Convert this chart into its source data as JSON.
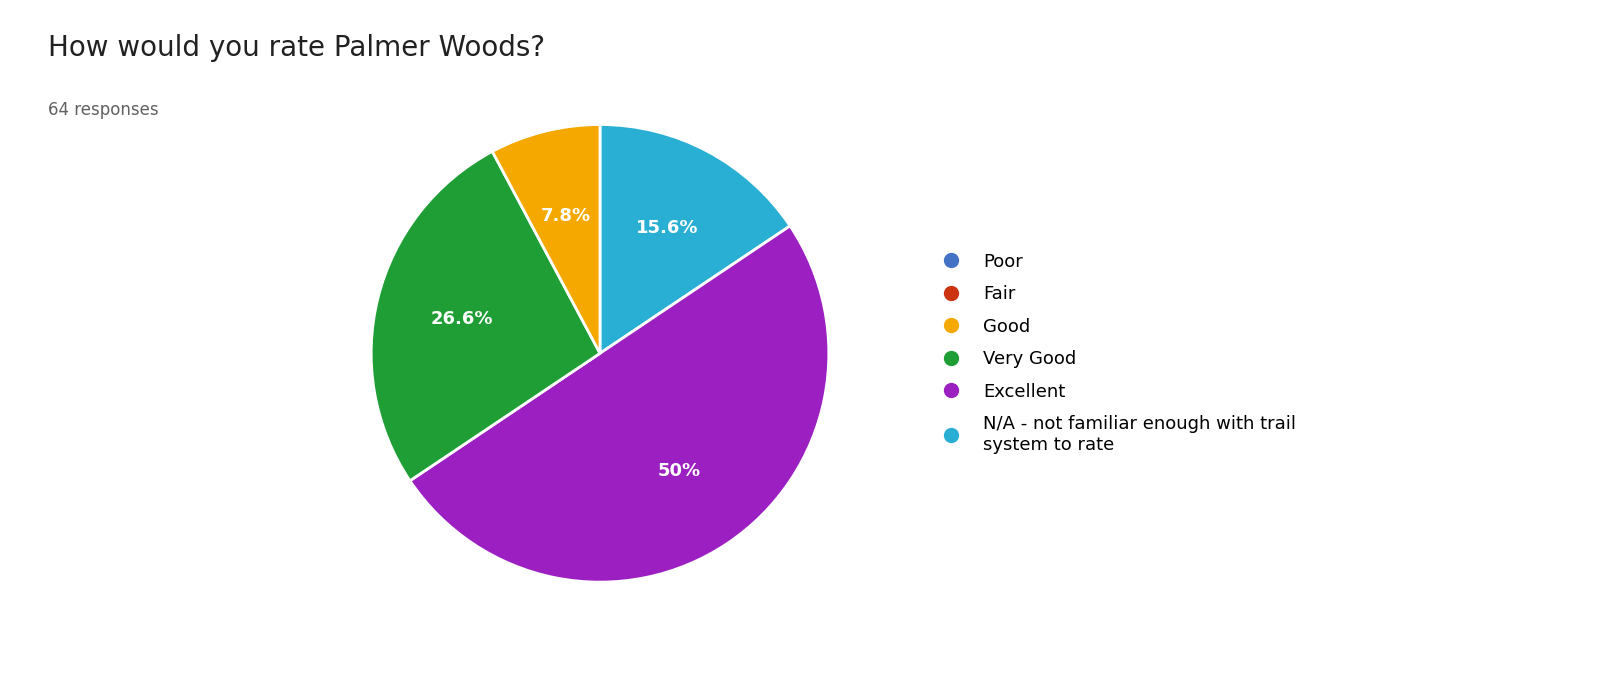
{
  "title": "How would you rate Palmer Woods?",
  "subtitle": "64 responses",
  "labels": [
    "Poor",
    "Fair",
    "Good",
    "Very Good",
    "Excellent",
    "N/A - not familiar enough with trail\nsystem to rate"
  ],
  "values": [
    0,
    0,
    7.8,
    26.6,
    50.0,
    15.6
  ],
  "colors": [
    "#4472c4",
    "#cc3311",
    "#f5a800",
    "#1e9e35",
    "#9b1fc1",
    "#29afd4"
  ],
  "pct_labels": [
    "",
    "",
    "7.8%",
    "26.6%",
    "50%",
    "15.6%"
  ],
  "title_fontsize": 20,
  "subtitle_fontsize": 12,
  "label_fontsize": 13,
  "background_color": "#ffffff",
  "startangle": 90
}
